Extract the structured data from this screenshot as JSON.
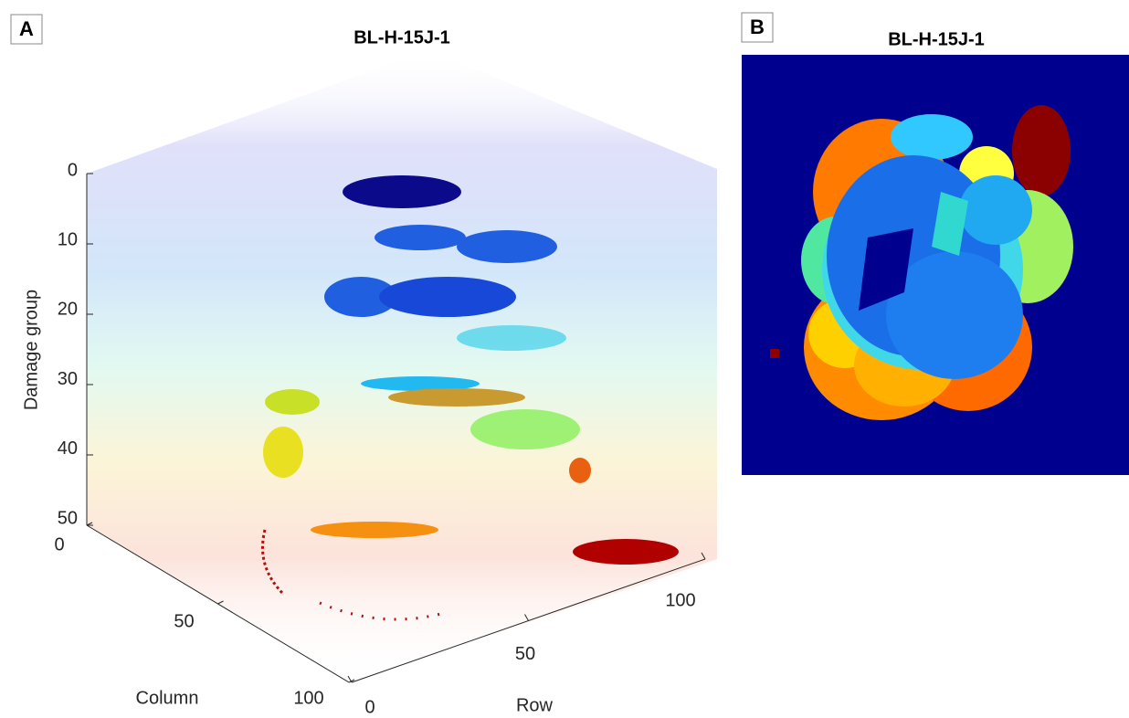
{
  "panels": [
    {
      "label": "A",
      "title": "BL-H-15J-1",
      "z_axis": {
        "label": "Damage group",
        "ticks": [
          0,
          10,
          20,
          30,
          40,
          50
        ]
      },
      "column_axis": {
        "label": "Column",
        "ticks": [
          0,
          50,
          100
        ]
      },
      "row_axis": {
        "label": "Row",
        "ticks": [
          0,
          50,
          100
        ]
      }
    },
    {
      "label": "B",
      "title": "BL-H-15J-1"
    }
  ]
}
